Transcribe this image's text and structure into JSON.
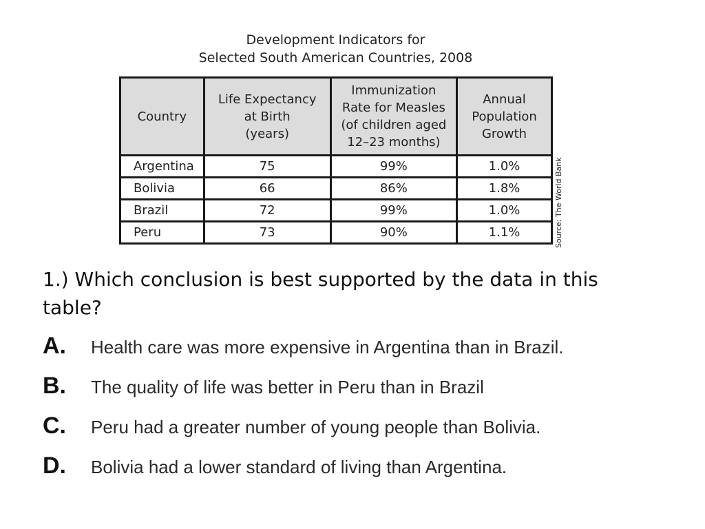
{
  "table": {
    "title_line1": "Development Indicators for",
    "title_line2": "Selected South American Countries, 2008",
    "headers": {
      "country": "Country",
      "life_expectancy": [
        "Life Expectancy",
        "at Birth",
        "(years)"
      ],
      "immunization": [
        "Immunization",
        "Rate for Measles",
        "(of children aged",
        "12–23 months)"
      ],
      "growth": [
        "Annual",
        "Population",
        "Growth"
      ]
    },
    "rows": [
      {
        "country": "Argentina",
        "life_expectancy": "75",
        "immunization": "99%",
        "growth": "1.0%"
      },
      {
        "country": "Bolivia",
        "life_expectancy": "66",
        "immunization": "86%",
        "growth": "1.8%"
      },
      {
        "country": "Brazil",
        "life_expectancy": "72",
        "immunization": "99%",
        "growth": "1.0%"
      },
      {
        "country": "Peru",
        "life_expectancy": "73",
        "immunization": "90%",
        "growth": "1.1%"
      }
    ],
    "source": "Source: The World Bank"
  },
  "question": {
    "text": "1.) Which conclusion is best supported by the data in this table?"
  },
  "options": [
    {
      "letter": "A.",
      "text": "Health care was more expensive in Argentina than in Brazil."
    },
    {
      "letter": "B.",
      "text": "The quality of life was better in Peru than in Brazil"
    },
    {
      "letter": "C.",
      "text": "Peru had a greater number of young people than Bolivia."
    },
    {
      "letter": "D.",
      "text": "Bolivia had a lower standard of living than Argentina."
    }
  ]
}
